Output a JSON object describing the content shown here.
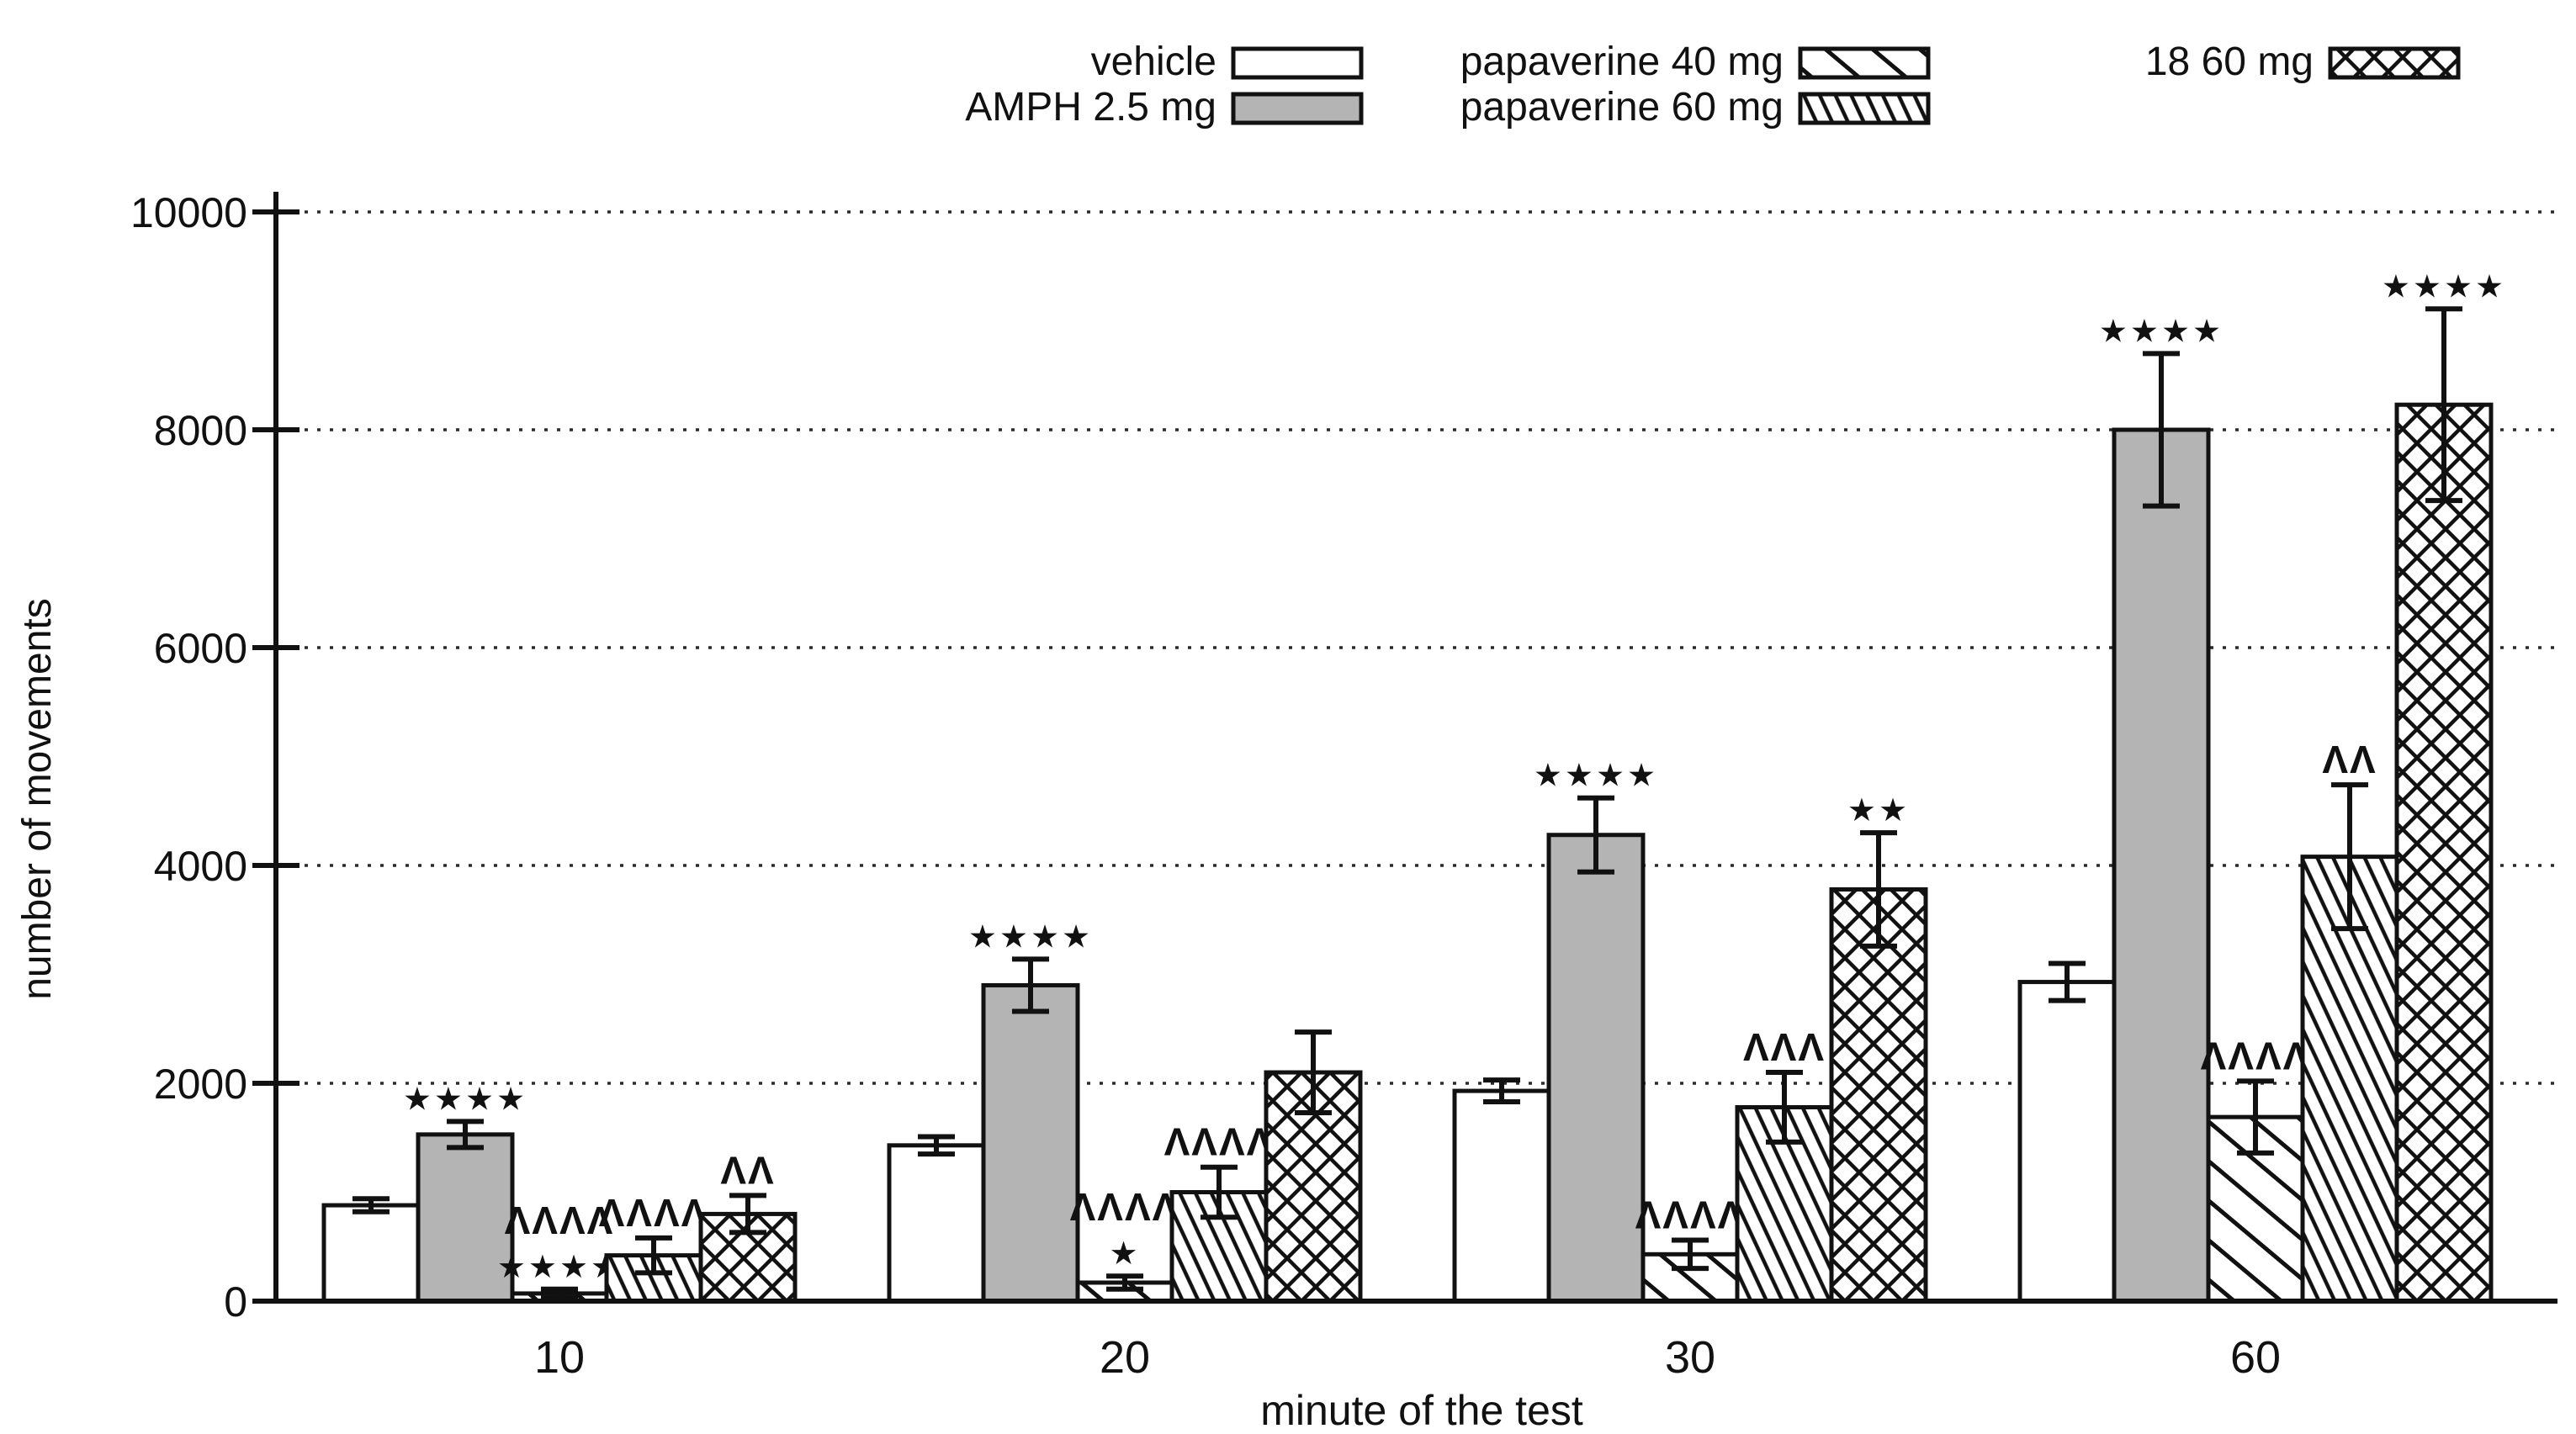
{
  "figure": {
    "background": "#ffffff",
    "ink_color": "#111111",
    "gray_fill": "#b4b4b4",
    "y_axis": {
      "label": "number of movements",
      "tick_labels": [
        "0",
        "2000",
        "4000",
        "6000",
        "8000",
        "10000"
      ],
      "tick_values": [
        0,
        2000,
        4000,
        6000,
        8000,
        10000
      ]
    },
    "x_axis": {
      "label": "minute of the test",
      "category_labels": [
        "10",
        "20",
        "30",
        "60"
      ]
    },
    "legend": [
      {
        "label": "vehicle",
        "style": "solid-white"
      },
      {
        "label": "AMPH 2.5 mg",
        "style": "solid-gray"
      },
      {
        "label": "papaverine 40 mg",
        "style": "hatch-sparse"
      },
      {
        "label": "papaverine 60 mg",
        "style": "hatch-dense"
      },
      {
        "label": "18  60 mg",
        "style": "crosshatch"
      }
    ]
  },
  "chart_data": {
    "type": "bar",
    "title": "",
    "xlabel": "minute of the test",
    "ylabel": "number of movements",
    "ylim": [
      0,
      10000
    ],
    "grid": "dotted-horizontal",
    "legend_position": "top",
    "categories": [
      "10",
      "20",
      "30",
      "60"
    ],
    "series": [
      {
        "name": "vehicle",
        "style": "solid-white",
        "values": [
          880,
          1430,
          1930,
          2930
        ],
        "errors": [
          60,
          80,
          100,
          170
        ],
        "annotations": [
          "",
          "",
          "",
          ""
        ]
      },
      {
        "name": "AMPH 2.5 mg",
        "style": "solid-gray",
        "values": [
          1530,
          2900,
          4280,
          8000
        ],
        "errors": [
          120,
          240,
          340,
          700
        ],
        "annotations": [
          "****",
          "****",
          "****",
          "****"
        ]
      },
      {
        "name": "papaverine 40 mg",
        "style": "hatch-sparse",
        "values": [
          70,
          170,
          430,
          1690
        ],
        "errors": [
          40,
          60,
          130,
          330
        ],
        "annotations": [
          "^^^^\n****",
          "^^^^\n*",
          "^^^^",
          "^^^^"
        ]
      },
      {
        "name": "papaverine 60 mg",
        "style": "hatch-dense",
        "values": [
          420,
          1000,
          1780,
          4080
        ],
        "errors": [
          160,
          230,
          320,
          660
        ],
        "annotations": [
          "^^^^",
          "^^^^",
          "^^^",
          "^^"
        ]
      },
      {
        "name": "18  60 mg",
        "style": "crosshatch",
        "values": [
          800,
          2100,
          3780,
          8230
        ],
        "errors": [
          170,
          370,
          520,
          880
        ],
        "annotations": [
          "^^",
          "",
          "**",
          "****"
        ]
      }
    ]
  }
}
